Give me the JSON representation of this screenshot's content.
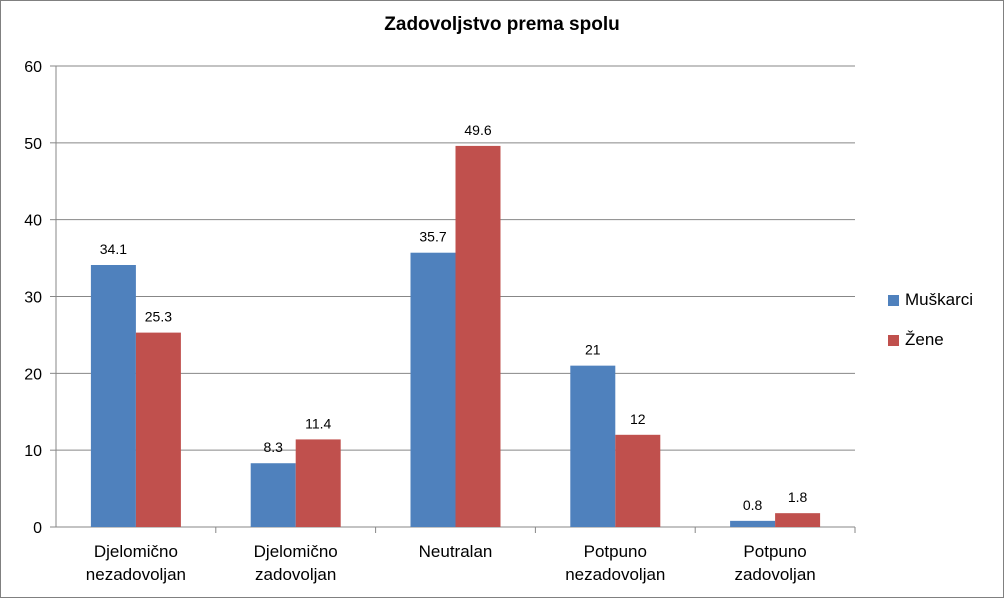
{
  "chart_data": {
    "type": "bar",
    "title": "Zadovoljstvo prema spolu",
    "categories": [
      [
        "Djelomično",
        "nezadovoljan"
      ],
      [
        "Djelomično",
        "zadovoljan"
      ],
      [
        "Neutralan"
      ],
      [
        "Potpuno",
        "nezadovoljan"
      ],
      [
        "Potpuno",
        "zadovoljan"
      ]
    ],
    "series": [
      {
        "name": "Muškarci",
        "color": "#4F81BD",
        "values": [
          34.1,
          8.3,
          35.7,
          21,
          0.8
        ]
      },
      {
        "name": "Žene",
        "color": "#C0504D",
        "values": [
          25.3,
          11.4,
          49.6,
          12,
          1.8
        ]
      }
    ],
    "ylim": [
      0,
      60
    ],
    "yticks": [
      "0",
      "10",
      "20",
      "30",
      "40",
      "50",
      "60"
    ],
    "grid": true,
    "legend": "right"
  }
}
